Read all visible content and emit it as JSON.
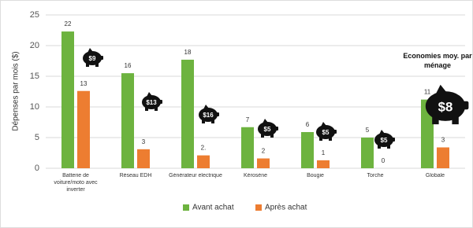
{
  "chart_data": {
    "type": "bar",
    "y_label": "Dépenses par mois ($)",
    "categories": [
      "Batterie de voiture/moto avec inverter",
      "Réseau EDH",
      "Générateur electrique",
      "Kérosène",
      "Bougie",
      "Torche",
      "Globale"
    ],
    "series": [
      {
        "name": "Avant achat",
        "color": "#6db33f",
        "values": [
          22.3,
          15.5,
          17.7,
          6.7,
          5.9,
          5.0,
          11.2
        ],
        "value_labels": [
          "22",
          "16",
          "18",
          "7",
          "6",
          "5",
          "11"
        ]
      },
      {
        "name": "Après achat",
        "color": "#ed7d31",
        "values": [
          12.6,
          3.1,
          2.1,
          1.6,
          1.3,
          0,
          3.4
        ],
        "value_labels": [
          "13",
          "3",
          "2.",
          "2",
          "1",
          "0",
          "3"
        ]
      }
    ],
    "savings_labels": [
      "$9",
      "$13",
      "$16",
      "$5",
      "$5",
      "$5",
      "$8"
    ],
    "savings_title": "Economies moy. par ménage",
    "ylim": [
      0,
      25
    ],
    "yticks": [
      0,
      5,
      10,
      15,
      20,
      25
    ],
    "grid": true,
    "legend": "bottom"
  }
}
